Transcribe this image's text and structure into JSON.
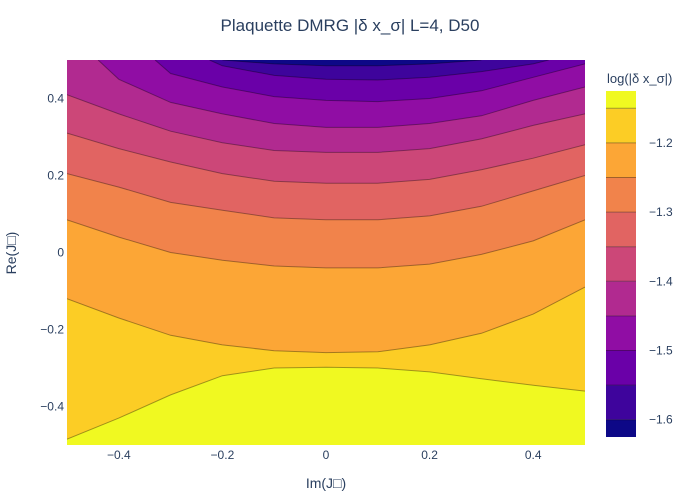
{
  "chart_data": {
    "type": "contour",
    "title": "Plaquette DMRG |δ x_σ| L=4, D50",
    "xlabel": "Im(J□)",
    "ylabel": "Re(J□)",
    "xlim": [
      -0.5,
      0.5
    ],
    "ylim": [
      -0.5,
      0.5
    ],
    "x_ticks": [
      -0.4,
      -0.2,
      0,
      0.2,
      0.4
    ],
    "y_ticks": [
      -0.4,
      -0.2,
      0,
      0.2,
      0.4
    ],
    "x_tick_labels": [
      "−0.4",
      "−0.2",
      "0",
      "0.2",
      "0.4"
    ],
    "y_tick_labels": [
      "−0.4",
      "−0.2",
      "0",
      "0.2",
      "0.4"
    ],
    "colorbar": {
      "title": "log(|δ x_σ|)",
      "range": [
        -1.625,
        -1.125
      ],
      "ticks": [
        -1.6,
        -1.5,
        -1.4,
        -1.3,
        -1.2
      ],
      "tick_labels": [
        "−1.6",
        "−1.5",
        "−1.4",
        "−1.3",
        "−1.2"
      ],
      "contour_levels": [
        -1.6,
        -1.55,
        -1.5,
        -1.45,
        -1.4,
        -1.35,
        -1.3,
        -1.25,
        -1.2,
        -1.15
      ],
      "band_colors": [
        "#0d0887",
        "#3e049c",
        "#6a00a8",
        "#900da4",
        "#b12a90",
        "#cc4778",
        "#e16462",
        "#f1834b",
        "#fca636",
        "#fccd25",
        "#f0f921"
      ]
    },
    "contour_lines": [
      {
        "level": -1.15,
        "points": [
          [
            -0.5,
            -0.485
          ],
          [
            -0.4,
            -0.43
          ],
          [
            -0.3,
            -0.37
          ],
          [
            -0.2,
            -0.32
          ],
          [
            -0.1,
            -0.3
          ],
          [
            0.0,
            -0.298
          ],
          [
            0.1,
            -0.3
          ],
          [
            0.2,
            -0.31
          ],
          [
            0.3,
            -0.328
          ],
          [
            0.4,
            -0.345
          ],
          [
            0.5,
            -0.36
          ]
        ]
      },
      {
        "level": -1.2,
        "points": [
          [
            -0.5,
            -0.12
          ],
          [
            -0.4,
            -0.17
          ],
          [
            -0.3,
            -0.215
          ],
          [
            -0.2,
            -0.24
          ],
          [
            -0.1,
            -0.255
          ],
          [
            0.0,
            -0.26
          ],
          [
            0.1,
            -0.258
          ],
          [
            0.2,
            -0.24
          ],
          [
            0.3,
            -0.21
          ],
          [
            0.4,
            -0.16
          ],
          [
            0.5,
            -0.09
          ]
        ]
      },
      {
        "level": -1.25,
        "points": [
          [
            -0.5,
            0.085
          ],
          [
            -0.4,
            0.04
          ],
          [
            -0.3,
            0.0
          ],
          [
            -0.2,
            -0.02
          ],
          [
            -0.1,
            -0.035
          ],
          [
            0.0,
            -0.04
          ],
          [
            0.1,
            -0.04
          ],
          [
            0.2,
            -0.03
          ],
          [
            0.3,
            -0.005
          ],
          [
            0.4,
            0.03
          ],
          [
            0.5,
            0.085
          ]
        ]
      },
      {
        "level": -1.3,
        "points": [
          [
            -0.5,
            0.205
          ],
          [
            -0.4,
            0.17
          ],
          [
            -0.3,
            0.13
          ],
          [
            -0.2,
            0.11
          ],
          [
            -0.1,
            0.09
          ],
          [
            0.0,
            0.085
          ],
          [
            0.1,
            0.085
          ],
          [
            0.2,
            0.095
          ],
          [
            0.3,
            0.12
          ],
          [
            0.4,
            0.16
          ],
          [
            0.5,
            0.2
          ]
        ]
      },
      {
        "level": -1.35,
        "points": [
          [
            -0.5,
            0.31
          ],
          [
            -0.4,
            0.27
          ],
          [
            -0.3,
            0.235
          ],
          [
            -0.2,
            0.205
          ],
          [
            -0.1,
            0.185
          ],
          [
            0.0,
            0.18
          ],
          [
            0.1,
            0.18
          ],
          [
            0.2,
            0.19
          ],
          [
            0.3,
            0.215
          ],
          [
            0.4,
            0.245
          ],
          [
            0.5,
            0.28
          ]
        ]
      },
      {
        "level": -1.4,
        "points": [
          [
            -0.5,
            0.41
          ],
          [
            -0.4,
            0.36
          ],
          [
            -0.3,
            0.315
          ],
          [
            -0.2,
            0.285
          ],
          [
            -0.1,
            0.265
          ],
          [
            0.0,
            0.26
          ],
          [
            0.1,
            0.26
          ],
          [
            0.2,
            0.27
          ],
          [
            0.3,
            0.295
          ],
          [
            0.4,
            0.33
          ],
          [
            0.5,
            0.36
          ]
        ]
      },
      {
        "level": -1.45,
        "points": [
          [
            -0.44,
            0.5
          ],
          [
            -0.4,
            0.45
          ],
          [
            -0.3,
            0.39
          ],
          [
            -0.2,
            0.36
          ],
          [
            -0.1,
            0.335
          ],
          [
            0.0,
            0.325
          ],
          [
            0.1,
            0.325
          ],
          [
            0.2,
            0.335
          ],
          [
            0.3,
            0.355
          ],
          [
            0.4,
            0.395
          ],
          [
            0.5,
            0.43
          ]
        ]
      },
      {
        "level": -1.5,
        "points": [
          [
            -0.33,
            0.5
          ],
          [
            -0.3,
            0.465
          ],
          [
            -0.2,
            0.43
          ],
          [
            -0.1,
            0.405
          ],
          [
            0.0,
            0.395
          ],
          [
            0.1,
            0.392
          ],
          [
            0.2,
            0.4
          ],
          [
            0.3,
            0.42
          ],
          [
            0.4,
            0.455
          ],
          [
            0.5,
            0.49
          ]
        ]
      },
      {
        "level": -1.55,
        "points": [
          [
            -0.225,
            0.5
          ],
          [
            -0.2,
            0.485
          ],
          [
            -0.1,
            0.46
          ],
          [
            0.0,
            0.45
          ],
          [
            0.1,
            0.448
          ],
          [
            0.2,
            0.455
          ],
          [
            0.3,
            0.47
          ],
          [
            0.4,
            0.49
          ],
          [
            0.43,
            0.5
          ]
        ]
      },
      {
        "level": -1.6,
        "points": [
          [
            -0.2,
            0.5
          ],
          [
            -0.1,
            0.49
          ],
          [
            0.0,
            0.485
          ],
          [
            0.1,
            0.485
          ],
          [
            0.2,
            0.49
          ],
          [
            0.3,
            0.5
          ]
        ]
      }
    ]
  }
}
